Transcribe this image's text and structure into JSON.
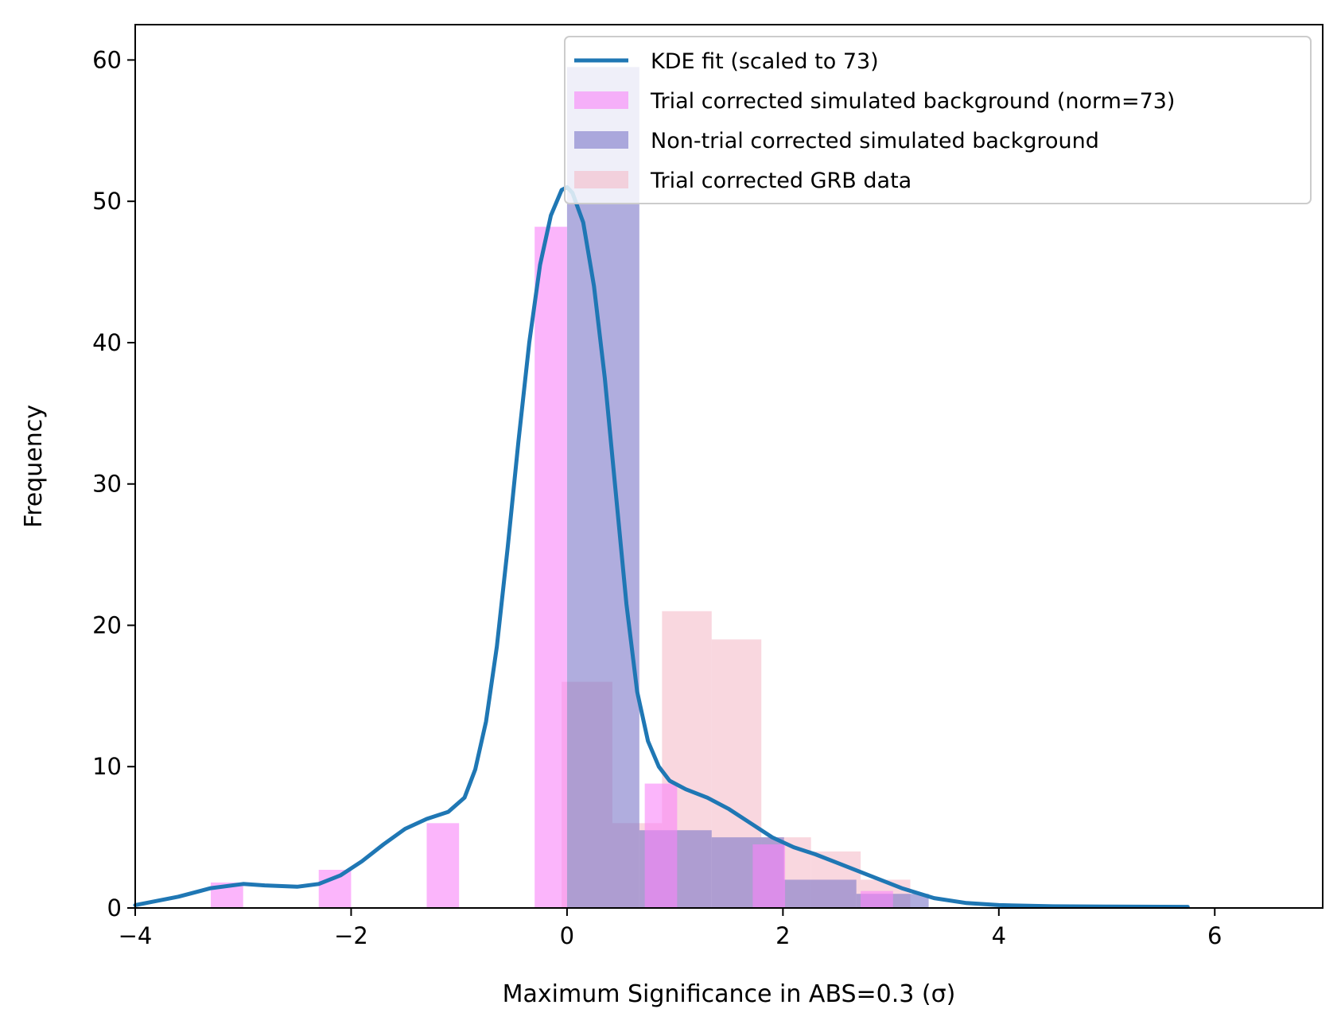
{
  "chart_data": {
    "type": "bar",
    "xlabel": "Maximum Significance in ABS=0.3 (σ)",
    "ylabel": "Frequency",
    "xlim": [
      -4,
      7
    ],
    "ylim": [
      0,
      62.5
    ],
    "x_ticks": [
      {
        "value": -4,
        "label": "−4"
      },
      {
        "value": -2,
        "label": "−2"
      },
      {
        "value": 0,
        "label": "0"
      },
      {
        "value": 2,
        "label": "2"
      },
      {
        "value": 4,
        "label": "4"
      },
      {
        "value": 6,
        "label": "6"
      }
    ],
    "y_ticks": [
      {
        "value": 0,
        "label": "0"
      },
      {
        "value": 10,
        "label": "10"
      },
      {
        "value": 20,
        "label": "20"
      },
      {
        "value": 30,
        "label": "30"
      },
      {
        "value": 40,
        "label": "40"
      },
      {
        "value": 50,
        "label": "50"
      },
      {
        "value": 60,
        "label": "60"
      }
    ],
    "grid": false,
    "legend_position": "top-right",
    "series": [
      {
        "name": "Trial corrected GRB data",
        "kind": "hist",
        "color": "#f4b6c4",
        "opacity": 0.55,
        "bins": [
          {
            "x0": -0.05,
            "x1": 0.42,
            "value": 16
          },
          {
            "x0": 0.42,
            "x1": 0.88,
            "value": 6
          },
          {
            "x0": 0.88,
            "x1": 1.34,
            "value": 21
          },
          {
            "x0": 1.34,
            "x1": 1.8,
            "value": 19
          },
          {
            "x0": 1.8,
            "x1": 2.26,
            "value": 5
          },
          {
            "x0": 2.26,
            "x1": 2.72,
            "value": 4
          },
          {
            "x0": 2.72,
            "x1": 3.18,
            "value": 2
          }
        ]
      },
      {
        "name": "Non-trial corrected simulated background",
        "kind": "hist",
        "color": "#7b76c8",
        "opacity": 0.6,
        "bins": [
          {
            "x0": 0.0,
            "x1": 0.67,
            "value": 59.5
          },
          {
            "x0": 0.67,
            "x1": 1.34,
            "value": 5.5
          },
          {
            "x0": 1.34,
            "x1": 2.01,
            "value": 5.0
          },
          {
            "x0": 2.01,
            "x1": 2.68,
            "value": 2.0
          },
          {
            "x0": 2.68,
            "x1": 3.35,
            "value": 1.0
          }
        ]
      },
      {
        "name": "Trial corrected simulated background (norm=73)",
        "kind": "hist",
        "color": "#f984f9",
        "opacity": 0.6,
        "bins": [
          {
            "x0": -3.3,
            "x1": -3.0,
            "value": 1.8
          },
          {
            "x0": -2.3,
            "x1": -2.0,
            "value": 2.7
          },
          {
            "x0": -1.3,
            "x1": -1.0,
            "value": 6.0
          },
          {
            "x0": -0.3,
            "x1": 0.0,
            "value": 48.2
          },
          {
            "x0": 0.72,
            "x1": 1.02,
            "value": 8.8
          },
          {
            "x0": 1.72,
            "x1": 2.02,
            "value": 4.5
          },
          {
            "x0": 2.72,
            "x1": 3.02,
            "value": 1.2
          }
        ]
      },
      {
        "name": "KDE fit (scaled to 73)",
        "kind": "line",
        "color": "#1f77b4",
        "x": [
          -4.0,
          -3.6,
          -3.3,
          -3.0,
          -2.8,
          -2.5,
          -2.3,
          -2.1,
          -1.9,
          -1.7,
          -1.5,
          -1.3,
          -1.1,
          -0.95,
          -0.85,
          -0.75,
          -0.65,
          -0.55,
          -0.45,
          -0.35,
          -0.25,
          -0.15,
          -0.05,
          0.0,
          0.05,
          0.15,
          0.25,
          0.35,
          0.45,
          0.55,
          0.65,
          0.75,
          0.85,
          0.95,
          1.1,
          1.3,
          1.5,
          1.7,
          1.9,
          2.1,
          2.3,
          2.5,
          2.8,
          3.1,
          3.4,
          3.7,
          4.0,
          4.5,
          5.0,
          5.75
        ],
        "y": [
          0.2,
          0.8,
          1.4,
          1.7,
          1.6,
          1.5,
          1.7,
          2.3,
          3.3,
          4.5,
          5.6,
          6.3,
          6.8,
          7.8,
          9.8,
          13.2,
          18.5,
          25.5,
          33.0,
          40.0,
          45.5,
          49.0,
          50.8,
          51.0,
          50.6,
          48.5,
          44.0,
          37.5,
          29.5,
          21.5,
          15.3,
          11.8,
          10.0,
          9.0,
          8.4,
          7.8,
          7.0,
          6.0,
          5.0,
          4.3,
          3.8,
          3.2,
          2.3,
          1.4,
          0.7,
          0.35,
          0.2,
          0.12,
          0.1,
          0.08
        ]
      }
    ],
    "legend": [
      {
        "label": "KDE fit (scaled to 73)",
        "kind": "line",
        "color": "#1f77b4"
      },
      {
        "label": "Trial corrected simulated background (norm=73)",
        "kind": "patch",
        "color": "#f984f9",
        "opacity": 0.6
      },
      {
        "label": "Non-trial corrected simulated background",
        "kind": "patch",
        "color": "#7b76c8",
        "opacity": 0.6
      },
      {
        "label": "Trial corrected GRB data",
        "kind": "patch",
        "color": "#f4b6c4",
        "opacity": 0.55
      }
    ]
  }
}
